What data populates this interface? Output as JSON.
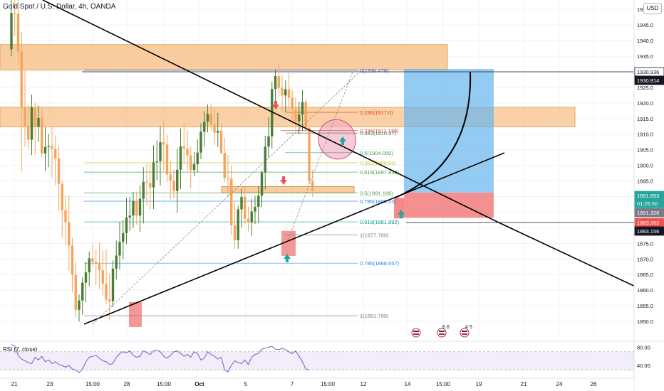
{
  "header": {
    "symbol": "Gold Spot / U.S. Dollar, 4h, OANDA",
    "currency": "USD"
  },
  "colors": {
    "up": "#26a69a",
    "down": "#ef5350",
    "bull_candle": "#4a7d36",
    "bear_candle": "#f6a45b",
    "zone": "#f6b26b",
    "target": "#66b5ee",
    "stop": "#f26b6b",
    "trendline": "#000000"
  },
  "chart_data": {
    "type": "candlestick",
    "title": "Gold Spot / U.S. Dollar, 4h, OANDA",
    "y_axis": {
      "range": [
        1845,
        1953
      ],
      "ticks": [
        1850,
        1855,
        1860,
        1865,
        1870,
        1875,
        1880,
        1885,
        1890,
        1895,
        1900,
        1905,
        1910,
        1915,
        1920,
        1925,
        1930,
        1935,
        1940,
        1945,
        1950
      ]
    },
    "x_axis": {
      "ticks": [
        "21",
        "23",
        "15:00",
        "28",
        "15:00",
        "Oct",
        "5",
        "7",
        "15:00",
        "12",
        "14",
        "15:00",
        "19",
        "21",
        "24",
        "26"
      ]
    },
    "price_labels": [
      {
        "value": "1930.936",
        "style": "outline"
      },
      {
        "value": "1930.814",
        "style": "dark"
      },
      {
        "value": "1891.853",
        "style": "green"
      },
      {
        "value": "01:26:50",
        "style": "green"
      },
      {
        "value": "1891.320",
        "style": "gray"
      },
      {
        "value": "1883.262",
        "style": "red"
      },
      {
        "value": "1883.156",
        "style": "dark"
      }
    ],
    "fib_levels": [
      {
        "label": "0(1930.478)",
        "price": 1930.478
      },
      {
        "label": "0.236(1917.0)",
        "price": 1917.0
      },
      {
        "label": "0.236(1911.138)",
        "price": 1911.138
      },
      {
        "label": "0.382(1910.37)",
        "price": 1910.37
      },
      {
        "label": "0.5(1904.059)",
        "price": 1904.059
      },
      {
        "label": "0.382(1900.83)",
        "price": 1900.83
      },
      {
        "label": "0.618(1897.838)",
        "price": 1897.838
      },
      {
        "label": "0.5(1891.188)",
        "price": 1891.188
      },
      {
        "label": "0.786(1888.52)",
        "price": 1888.52
      },
      {
        "label": "0.618(1881.892)",
        "price": 1881.892
      },
      {
        "label": "1(1877.700)",
        "price": 1877.7
      },
      {
        "label": "0.786(1868.657)",
        "price": 1868.657
      },
      {
        "label": "1(1851.799)",
        "price": 1851.799
      }
    ],
    "candles": [
      [
        1937.2,
        1955.6,
        1935.0,
        1948.8
      ],
      [
        1948.8,
        1963.1,
        1941.5,
        1948.6
      ],
      [
        1948.6,
        1953.1,
        1932.9,
        1936.5
      ],
      [
        1936.5,
        1942.6,
        1898.2,
        1918.5
      ],
      [
        1918.5,
        1930.4,
        1906.1,
        1912.7
      ],
      [
        1912.7,
        1919.4,
        1905.5,
        1908.2
      ],
      [
        1908.2,
        1922.7,
        1903.3,
        1918.6
      ],
      [
        1918.6,
        1920.1,
        1903.3,
        1912.3
      ],
      [
        1912.3,
        1919.2,
        1907.6,
        1915.2
      ],
      [
        1915.2,
        1918.4,
        1902.6,
        1903.8
      ],
      [
        1903.8,
        1912.3,
        1898.2,
        1905.9
      ],
      [
        1905.9,
        1910.1,
        1899.4,
        1906.2
      ],
      [
        1906.2,
        1912.4,
        1896.1,
        1905.3
      ],
      [
        1905.3,
        1909.6,
        1893.7,
        1902.3
      ],
      [
        1902.3,
        1906.2,
        1885.3,
        1894.1
      ],
      [
        1894.1,
        1895.1,
        1877.1,
        1885.6
      ],
      [
        1885.6,
        1890.2,
        1874.5,
        1881.8
      ],
      [
        1881.8,
        1890.5,
        1866.2,
        1874.3
      ],
      [
        1874.3,
        1876.9,
        1859.4,
        1864.9
      ],
      [
        1864.9,
        1869.1,
        1851.3,
        1853.7
      ],
      [
        1853.7,
        1858.6,
        1849.9,
        1856.7
      ],
      [
        1856.7,
        1864.2,
        1852.1,
        1862.4
      ],
      [
        1862.4,
        1869.1,
        1856.1,
        1865.7
      ],
      [
        1865.7,
        1872.4,
        1861.3,
        1870.2
      ],
      [
        1870.2,
        1874.5,
        1867.6,
        1869.1
      ],
      [
        1869.1,
        1872.9,
        1861.6,
        1868.7
      ],
      [
        1868.7,
        1875.4,
        1860.4,
        1866.4
      ],
      [
        1866.4,
        1872.7,
        1858.1,
        1862.1
      ],
      [
        1862.1,
        1873.1,
        1855.7,
        1857.0
      ],
      [
        1857.0,
        1865.4,
        1850.5,
        1856.4
      ],
      [
        1856.4,
        1869.5,
        1854.5,
        1866.9
      ],
      [
        1866.9,
        1875.9,
        1863.4,
        1871.1
      ],
      [
        1871.1,
        1881.9,
        1866.6,
        1875.5
      ],
      [
        1875.5,
        1882.4,
        1869.9,
        1878.3
      ],
      [
        1878.3,
        1889.6,
        1874.8,
        1883.3
      ],
      [
        1883.3,
        1889.9,
        1879.0,
        1883.9
      ],
      [
        1883.9,
        1891.5,
        1880.0,
        1888.6
      ],
      [
        1888.6,
        1891.6,
        1881.0,
        1883.9
      ],
      [
        1883.9,
        1893.6,
        1878.7,
        1889.3
      ],
      [
        1889.3,
        1899.4,
        1881.4,
        1894.7
      ],
      [
        1894.7,
        1900.5,
        1887.1,
        1894.4
      ],
      [
        1894.4,
        1900.6,
        1885.8,
        1892.9
      ],
      [
        1892.9,
        1906.4,
        1886.0,
        1901.0
      ],
      [
        1901.0,
        1908.0,
        1895.3,
        1901.3
      ],
      [
        1901.3,
        1912.6,
        1893.5,
        1907.4
      ],
      [
        1907.4,
        1914.4,
        1898.5,
        1906.7
      ],
      [
        1906.7,
        1909.8,
        1894.6,
        1897.1
      ],
      [
        1897.1,
        1901.5,
        1889.1,
        1895.1
      ],
      [
        1895.1,
        1898.7,
        1889.4,
        1891.8
      ],
      [
        1891.8,
        1905.3,
        1884.8,
        1898.6
      ],
      [
        1898.6,
        1911.8,
        1892.4,
        1906.1
      ],
      [
        1906.1,
        1913.6,
        1900.4,
        1905.4
      ],
      [
        1905.4,
        1911.2,
        1898.4,
        1903.2
      ],
      [
        1903.2,
        1906.0,
        1892.6,
        1898.5
      ],
      [
        1898.5,
        1904.3,
        1896.6,
        1900.4
      ],
      [
        1900.4,
        1908.3,
        1897.7,
        1904.1
      ],
      [
        1904.1,
        1913.4,
        1902.0,
        1910.8
      ],
      [
        1910.8,
        1917.4,
        1906.0,
        1914.0
      ],
      [
        1914.0,
        1919.5,
        1910.6,
        1916.5
      ],
      [
        1916.5,
        1919.6,
        1911.0,
        1913.1
      ],
      [
        1913.1,
        1918.1,
        1906.4,
        1910.5
      ],
      [
        1910.5,
        1916.8,
        1905.9,
        1911.1
      ],
      [
        1911.1,
        1913.2,
        1903.5,
        1904.0
      ],
      [
        1904.0,
        1908.9,
        1894.6,
        1896.0
      ],
      [
        1896.0,
        1903.3,
        1890.1,
        1895.8
      ],
      [
        1895.8,
        1900.0,
        1877.8,
        1880.8
      ],
      [
        1880.8,
        1888.2,
        1873.3,
        1876.0
      ],
      [
        1876.0,
        1887.1,
        1873.3,
        1885.9
      ],
      [
        1885.9,
        1892.5,
        1880.1,
        1889.9
      ],
      [
        1889.9,
        1893.4,
        1881.3,
        1882.9
      ],
      [
        1882.9,
        1886.8,
        1878.9,
        1881.7
      ],
      [
        1881.7,
        1889.3,
        1877.3,
        1885.2
      ],
      [
        1885.2,
        1890.2,
        1881.2,
        1886.7
      ],
      [
        1886.7,
        1893.3,
        1881.6,
        1890.3
      ],
      [
        1890.3,
        1898.4,
        1886.6,
        1897.7
      ],
      [
        1897.7,
        1909.5,
        1892.3,
        1906.0
      ],
      [
        1906.0,
        1915.4,
        1902.6,
        1909.3
      ],
      [
        1909.3,
        1926.8,
        1905.4,
        1924.5
      ],
      [
        1924.5,
        1930.9,
        1919.5,
        1928.6
      ],
      [
        1928.6,
        1932.6,
        1921.9,
        1924.9
      ],
      [
        1924.9,
        1928.8,
        1917.4,
        1922.4
      ],
      [
        1922.4,
        1927.3,
        1917.0,
        1924.4
      ],
      [
        1924.4,
        1929.6,
        1917.5,
        1921.7
      ],
      [
        1921.7,
        1924.0,
        1913.0,
        1918.0
      ],
      [
        1918.0,
        1921.7,
        1911.2,
        1914.1
      ],
      [
        1914.1,
        1920.4,
        1910.0,
        1916.3
      ],
      [
        1916.3,
        1924.2,
        1911.1,
        1920.3
      ],
      [
        1920.3,
        1921.3,
        1910.8,
        1912.0
      ],
      [
        1912.0,
        1912.3,
        1893.9,
        1894.9
      ],
      [
        1894.9,
        1898.6,
        1889.8,
        1892.0
      ]
    ],
    "rsi": {
      "label": "RSI (7, close)",
      "ticks": [
        80,
        40
      ],
      "band": [
        70,
        30
      ],
      "values": [
        86,
        82,
        62,
        54,
        50,
        46,
        44,
        58,
        52,
        60,
        48,
        52,
        44,
        48,
        42,
        40,
        36,
        40,
        32,
        30,
        24,
        32,
        48,
        58,
        60,
        62,
        56,
        50,
        48,
        42,
        44,
        58,
        66,
        70,
        68,
        72,
        62,
        58,
        60,
        72,
        68,
        64,
        72,
        74,
        70,
        60,
        56,
        62,
        70,
        72,
        66,
        60,
        64,
        58,
        70,
        66,
        52,
        56,
        70,
        64,
        60,
        54,
        58,
        30,
        26,
        40,
        50,
        46,
        44,
        52,
        42,
        58,
        64,
        66,
        76,
        78,
        80,
        82,
        76,
        74,
        78,
        74,
        70,
        66,
        72,
        60,
        48,
        32,
        30
      ]
    }
  },
  "annotations": {
    "event_badges": [
      {
        "text": ""
      },
      {
        "text": "6 6"
      },
      {
        "text": "4 5"
      }
    ]
  }
}
